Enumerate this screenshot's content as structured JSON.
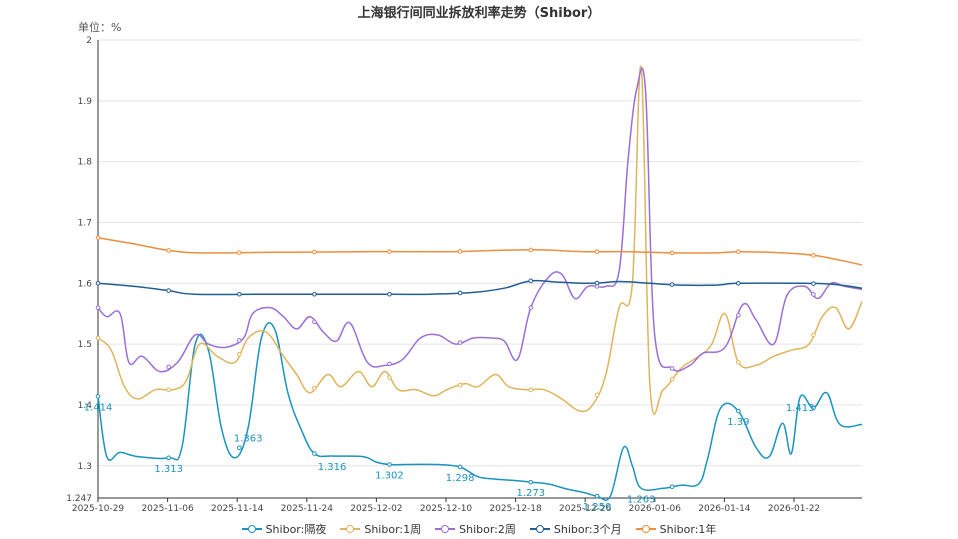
{
  "chart_data": {
    "type": "line",
    "title": "上海银行间同业拆放利率走势（Shibor）",
    "unit_label": "单位：%",
    "y_ticks": [
      "2",
      "1.9",
      "1.8",
      "1.7",
      "1.6",
      "1.5",
      "1.4",
      "1.3"
    ],
    "y_min_label": "1.247",
    "ylim": [
      1.247,
      2
    ],
    "x_ticks": [
      "2025-10-29",
      "2025-11-06",
      "2025-11-14",
      "2025-11-24",
      "2025-12-02",
      "2025-12-10",
      "2025-12-18",
      "2025-12-26",
      "2026-01-06",
      "2026-01-14",
      "2026-01-22"
    ],
    "grid": true,
    "legend_position": "bottom",
    "series": [
      {
        "name": "Shibor:隔夜",
        "color": "#1a93bf",
        "points": [
          [
            0,
            1.414
          ],
          [
            2,
            1.315
          ],
          [
            5,
            1.322
          ],
          [
            9,
            1.315
          ],
          [
            16,
            1.313
          ],
          [
            19,
            1.33
          ],
          [
            22,
            1.5
          ],
          [
            25,
            1.49
          ],
          [
            28,
            1.36
          ],
          [
            31,
            1.313
          ],
          [
            34,
            1.363
          ],
          [
            37,
            1.51
          ],
          [
            40,
            1.525
          ],
          [
            43,
            1.42
          ],
          [
            46,
            1.36
          ],
          [
            49,
            1.32
          ],
          [
            53,
            1.316
          ],
          [
            60,
            1.315
          ],
          [
            63,
            1.306
          ],
          [
            66,
            1.302
          ],
          [
            70,
            1.302
          ],
          [
            77,
            1.302
          ],
          [
            82,
            1.298
          ],
          [
            86,
            1.282
          ],
          [
            90,
            1.278
          ],
          [
            94,
            1.276
          ],
          [
            98,
            1.273
          ],
          [
            102,
            1.27
          ],
          [
            106,
            1.262
          ],
          [
            110,
            1.256
          ],
          [
            113,
            1.25
          ],
          [
            116,
            1.25
          ],
          [
            119,
            1.33
          ],
          [
            121,
            1.3
          ],
          [
            123,
            1.263
          ],
          [
            128,
            1.263
          ],
          [
            132,
            1.268
          ],
          [
            136,
            1.27
          ],
          [
            138,
            1.31
          ],
          [
            141,
            1.395
          ],
          [
            145,
            1.39
          ],
          [
            149,
            1.33
          ],
          [
            152,
            1.315
          ],
          [
            155,
            1.37
          ],
          [
            157,
            1.32
          ],
          [
            159,
            1.413
          ],
          [
            162,
            1.395
          ],
          [
            165,
            1.42
          ],
          [
            168,
            1.368
          ],
          [
            173,
            1.368
          ]
        ],
        "labels": [
          [
            0,
            1.414
          ],
          [
            16,
            1.313
          ],
          [
            34,
            1.363
          ],
          [
            53,
            1.316
          ],
          [
            66,
            1.302
          ],
          [
            82,
            1.298
          ],
          [
            98,
            1.273
          ],
          [
            113,
            1.25
          ],
          [
            123,
            1.263
          ],
          [
            145,
            1.39
          ],
          [
            159,
            1.413
          ]
        ],
        "label_texts": [
          "1.414",
          "1.313",
          "1.363",
          "1.316",
          "1.302",
          "1.298",
          "1.273",
          "1.250",
          "1.263",
          "1.39",
          "1.413"
        ]
      },
      {
        "name": "Shibor:1周",
        "color": "#e0b45c",
        "points": [
          [
            0,
            1.51
          ],
          [
            3,
            1.49
          ],
          [
            6,
            1.43
          ],
          [
            9,
            1.41
          ],
          [
            13,
            1.425
          ],
          [
            17,
            1.425
          ],
          [
            20,
            1.44
          ],
          [
            23,
            1.5
          ],
          [
            27,
            1.48
          ],
          [
            31,
            1.47
          ],
          [
            34,
            1.51
          ],
          [
            38,
            1.52
          ],
          [
            42,
            1.48
          ],
          [
            45,
            1.45
          ],
          [
            48,
            1.42
          ],
          [
            52,
            1.45
          ],
          [
            55,
            1.43
          ],
          [
            59,
            1.455
          ],
          [
            62,
            1.43
          ],
          [
            65,
            1.455
          ],
          [
            68,
            1.425
          ],
          [
            72,
            1.425
          ],
          [
            76,
            1.415
          ],
          [
            79,
            1.425
          ],
          [
            83,
            1.435
          ],
          [
            86,
            1.43
          ],
          [
            90,
            1.45
          ],
          [
            93,
            1.43
          ],
          [
            97,
            1.425
          ],
          [
            101,
            1.425
          ],
          [
            105,
            1.41
          ],
          [
            109,
            1.39
          ],
          [
            112,
            1.4
          ],
          [
            115,
            1.45
          ],
          [
            118,
            1.56
          ],
          [
            121,
            1.6
          ],
          [
            123,
            1.955
          ],
          [
            125,
            1.43
          ],
          [
            128,
            1.425
          ],
          [
            132,
            1.46
          ],
          [
            136,
            1.48
          ],
          [
            139,
            1.5
          ],
          [
            142,
            1.55
          ],
          [
            145,
            1.47
          ],
          [
            149,
            1.465
          ],
          [
            153,
            1.48
          ],
          [
            157,
            1.49
          ],
          [
            161,
            1.5
          ],
          [
            164,
            1.545
          ],
          [
            167,
            1.56
          ],
          [
            170,
            1.525
          ],
          [
            173,
            1.57
          ]
        ]
      },
      {
        "name": "Shibor:2周",
        "color": "#9a6fd8",
        "points": [
          [
            0,
            1.56
          ],
          [
            2,
            1.545
          ],
          [
            5,
            1.55
          ],
          [
            7,
            1.47
          ],
          [
            10,
            1.48
          ],
          [
            14,
            1.455
          ],
          [
            18,
            1.47
          ],
          [
            22,
            1.515
          ],
          [
            25,
            1.5
          ],
          [
            29,
            1.495
          ],
          [
            33,
            1.51
          ],
          [
            35,
            1.55
          ],
          [
            39,
            1.56
          ],
          [
            42,
            1.545
          ],
          [
            45,
            1.525
          ],
          [
            48,
            1.545
          ],
          [
            51,
            1.52
          ],
          [
            54,
            1.505
          ],
          [
            57,
            1.535
          ],
          [
            61,
            1.47
          ],
          [
            65,
            1.465
          ],
          [
            69,
            1.475
          ],
          [
            73,
            1.51
          ],
          [
            77,
            1.515
          ],
          [
            81,
            1.5
          ],
          [
            85,
            1.51
          ],
          [
            89,
            1.51
          ],
          [
            92,
            1.505
          ],
          [
            95,
            1.475
          ],
          [
            98,
            1.56
          ],
          [
            102,
            1.61
          ],
          [
            105,
            1.615
          ],
          [
            108,
            1.575
          ],
          [
            111,
            1.595
          ],
          [
            115,
            1.595
          ],
          [
            118,
            1.62
          ],
          [
            120,
            1.8
          ],
          [
            122,
            1.92
          ],
          [
            124,
            1.915
          ],
          [
            126,
            1.52
          ],
          [
            130,
            1.46
          ],
          [
            134,
            1.465
          ],
          [
            137,
            1.485
          ],
          [
            142,
            1.495
          ],
          [
            146,
            1.565
          ],
          [
            149,
            1.54
          ],
          [
            153,
            1.5
          ],
          [
            156,
            1.58
          ],
          [
            160,
            1.595
          ],
          [
            163,
            1.575
          ],
          [
            166,
            1.6
          ],
          [
            169,
            1.595
          ],
          [
            173,
            1.59
          ]
        ]
      },
      {
        "name": "Shibor:3个月",
        "color": "#215d92",
        "points": [
          [
            0,
            1.6
          ],
          [
            8,
            1.595
          ],
          [
            16,
            1.588
          ],
          [
            22,
            1.582
          ],
          [
            40,
            1.582
          ],
          [
            60,
            1.582
          ],
          [
            75,
            1.582
          ],
          [
            85,
            1.585
          ],
          [
            92,
            1.592
          ],
          [
            98,
            1.604
          ],
          [
            104,
            1.602
          ],
          [
            112,
            1.6
          ],
          [
            118,
            1.603
          ],
          [
            125,
            1.6
          ],
          [
            132,
            1.597
          ],
          [
            140,
            1.597
          ],
          [
            145,
            1.6
          ],
          [
            160,
            1.6
          ],
          [
            167,
            1.598
          ],
          [
            173,
            1.592
          ]
        ]
      },
      {
        "name": "Shibor:1年",
        "color": "#ec8e3d",
        "points": [
          [
            0,
            1.675
          ],
          [
            8,
            1.665
          ],
          [
            16,
            1.654
          ],
          [
            24,
            1.65
          ],
          [
            40,
            1.651
          ],
          [
            60,
            1.652
          ],
          [
            80,
            1.652
          ],
          [
            90,
            1.654
          ],
          [
            100,
            1.655
          ],
          [
            110,
            1.652
          ],
          [
            120,
            1.652
          ],
          [
            130,
            1.65
          ],
          [
            140,
            1.65
          ],
          [
            145,
            1.652
          ],
          [
            155,
            1.65
          ],
          [
            162,
            1.646
          ],
          [
            168,
            1.638
          ],
          [
            173,
            1.63
          ]
        ]
      }
    ]
  }
}
